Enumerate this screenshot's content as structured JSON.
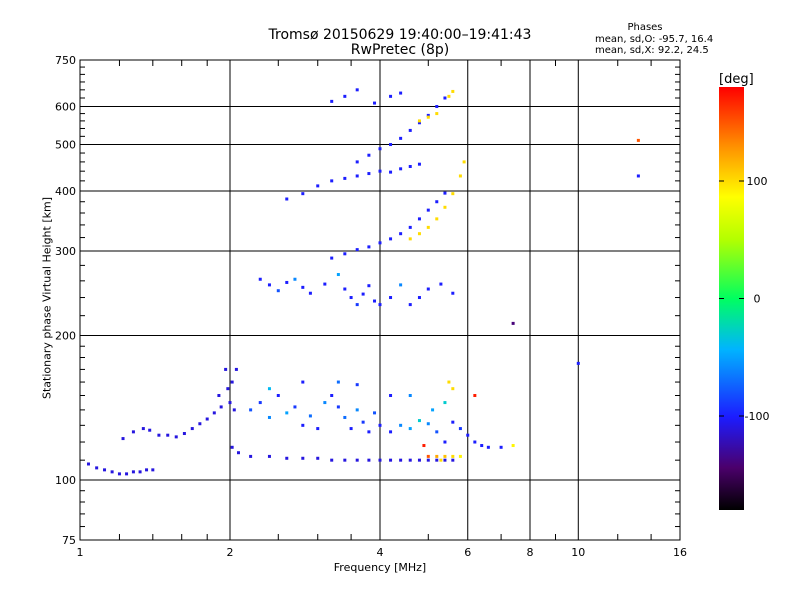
{
  "chart_data": {
    "type": "scatter",
    "title": "Tromsø 20150629 19:40:00–19:41:43",
    "subtitle": "RwPretec (8p)",
    "xlabel": "Frequency [MHz]",
    "ylabel": "Stationary phase Virtual Height [km]",
    "x_scale": "log",
    "y_scale": "log",
    "xlim": [
      1,
      16
    ],
    "ylim": [
      75,
      750
    ],
    "x_ticks": [
      "1",
      "2",
      "4",
      "6",
      "8",
      "10",
      "16"
    ],
    "y_ticks": [
      "75",
      "100",
      "200",
      "300",
      "400",
      "500",
      "600",
      "750"
    ],
    "grid": true,
    "phase_stats": {
      "title": "Phases",
      "o_line": "mean, sd,O: -95.7, 16.4",
      "x_line": "mean, sd,X:  92.2, 24.5"
    },
    "colorbar": {
      "label": "[deg]",
      "ticks": [
        "100",
        "0",
        "-100"
      ],
      "tick_values": [
        100,
        0,
        -100
      ],
      "range": [
        -180,
        180
      ],
      "colormap": "rainbow"
    },
    "series": [
      {
        "comment_trace": "low trace",
        "points": [
          [
            1.04,
            108,
            -110
          ],
          [
            1.08,
            106,
            -110
          ],
          [
            1.12,
            105,
            -110
          ],
          [
            1.16,
            104,
            -110
          ],
          [
            1.2,
            103,
            -110
          ],
          [
            1.24,
            103,
            -110
          ],
          [
            1.28,
            104,
            -110
          ],
          [
            1.32,
            104,
            -110
          ],
          [
            1.36,
            105,
            -110
          ],
          [
            1.4,
            105,
            -110
          ],
          [
            1.22,
            122,
            -110
          ],
          [
            1.28,
            126,
            -110
          ],
          [
            1.34,
            128,
            -110
          ],
          [
            1.38,
            127,
            -110
          ],
          [
            1.44,
            124,
            -110
          ],
          [
            1.5,
            124,
            -110
          ],
          [
            1.56,
            123,
            -110
          ],
          [
            1.62,
            125,
            -110
          ],
          [
            1.68,
            128,
            -110
          ],
          [
            1.74,
            131,
            -110
          ],
          [
            1.8,
            134,
            -110
          ],
          [
            1.86,
            138,
            -110
          ],
          [
            1.92,
            142,
            -110
          ],
          [
            1.98,
            155,
            -110
          ],
          [
            2.02,
            160,
            -110
          ],
          [
            2.06,
            170,
            -110
          ],
          [
            1.96,
            170,
            -110
          ],
          [
            1.9,
            150,
            -110
          ],
          [
            2.0,
            145,
            -110
          ],
          [
            2.04,
            140,
            -110
          ],
          [
            2.02,
            117,
            -110
          ],
          [
            2.08,
            114,
            -110
          ],
          [
            2.2,
            112,
            -110
          ],
          [
            2.4,
            112,
            -110
          ],
          [
            2.6,
            111,
            -110
          ],
          [
            2.8,
            111,
            -110
          ],
          [
            3.0,
            111,
            -110
          ],
          [
            3.2,
            110,
            -110
          ],
          [
            3.4,
            110,
            -110
          ],
          [
            3.6,
            110,
            -110
          ],
          [
            3.8,
            110,
            -110
          ],
          [
            4.0,
            110,
            -110
          ],
          [
            4.2,
            110,
            -110
          ],
          [
            4.4,
            110,
            -110
          ],
          [
            4.6,
            110,
            -110
          ],
          [
            4.8,
            110,
            -110
          ],
          [
            5.0,
            110,
            -110
          ],
          [
            5.2,
            110,
            -110
          ],
          [
            5.4,
            110,
            -110
          ],
          [
            5.6,
            110,
            -110
          ]
        ]
      },
      {
        "comment_trace": "mid scatter",
        "points": [
          [
            2.2,
            140,
            -80
          ],
          [
            2.3,
            145,
            -90
          ],
          [
            2.4,
            135,
            -60
          ],
          [
            2.5,
            150,
            -100
          ],
          [
            2.6,
            138,
            -50
          ],
          [
            2.7,
            142,
            -90
          ],
          [
            2.8,
            130,
            -100
          ],
          [
            2.9,
            136,
            -70
          ],
          [
            3.0,
            128,
            -100
          ],
          [
            3.1,
            145,
            -60
          ],
          [
            3.2,
            150,
            -100
          ],
          [
            3.3,
            142,
            -90
          ],
          [
            3.4,
            135,
            -70
          ],
          [
            3.5,
            128,
            -100
          ],
          [
            3.6,
            140,
            -60
          ],
          [
            3.7,
            132,
            -90
          ],
          [
            3.8,
            126,
            -100
          ],
          [
            3.9,
            138,
            -80
          ],
          [
            4.0,
            130,
            -100
          ],
          [
            4.2,
            126,
            -100
          ],
          [
            4.4,
            130,
            -60
          ],
          [
            4.6,
            128,
            -50
          ],
          [
            4.8,
            133,
            -30
          ],
          [
            5.0,
            131,
            -60
          ],
          [
            5.2,
            126,
            -80
          ],
          [
            5.4,
            120,
            -100
          ],
          [
            5.6,
            132,
            -100
          ],
          [
            5.8,
            128,
            -90
          ],
          [
            6.0,
            124,
            -100
          ],
          [
            6.2,
            120,
            -100
          ],
          [
            2.4,
            155,
            -40
          ],
          [
            2.8,
            160,
            -100
          ],
          [
            3.3,
            160,
            -70
          ],
          [
            3.6,
            158,
            -90
          ],
          [
            4.2,
            150,
            -100
          ],
          [
            4.6,
            150,
            -60
          ],
          [
            5.1,
            140,
            -50
          ],
          [
            5.4,
            145,
            -30
          ],
          [
            5.5,
            160,
            100
          ],
          [
            5.6,
            155,
            100
          ],
          [
            5.2,
            112,
            120
          ],
          [
            5.4,
            112,
            110
          ],
          [
            5.6,
            112,
            100
          ],
          [
            5.8,
            112,
            90
          ],
          [
            5.0,
            112,
            150
          ],
          [
            4.9,
            118,
            170
          ],
          [
            5.3,
            110,
            100
          ],
          [
            6.4,
            118,
            -100
          ],
          [
            6.6,
            117,
            -100
          ],
          [
            7.0,
            117,
            -100
          ],
          [
            7.4,
            118,
            90
          ],
          [
            6.2,
            150,
            170
          ]
        ]
      },
      {
        "comment_trace": "F region traces",
        "points": [
          [
            2.3,
            262,
            -100
          ],
          [
            2.4,
            255,
            -100
          ],
          [
            2.5,
            248,
            -80
          ],
          [
            2.6,
            258,
            -100
          ],
          [
            2.7,
            262,
            -60
          ],
          [
            2.8,
            252,
            -100
          ],
          [
            2.9,
            245,
            -100
          ],
          [
            3.1,
            256,
            -100
          ],
          [
            3.3,
            268,
            -50
          ],
          [
            3.4,
            250,
            -100
          ],
          [
            3.5,
            240,
            -100
          ],
          [
            3.6,
            232,
            -90
          ],
          [
            3.7,
            244,
            -100
          ],
          [
            3.8,
            254,
            -100
          ],
          [
            3.9,
            236,
            -100
          ],
          [
            4.0,
            232,
            -100
          ],
          [
            4.2,
            240,
            -100
          ],
          [
            4.4,
            255,
            -60
          ],
          [
            4.6,
            232,
            -100
          ],
          [
            4.8,
            240,
            -100
          ],
          [
            5.0,
            250,
            -100
          ],
          [
            5.3,
            256,
            -100
          ],
          [
            5.6,
            245,
            -100
          ],
          [
            3.2,
            290,
            -100
          ],
          [
            3.4,
            296,
            -100
          ],
          [
            3.6,
            302,
            -100
          ],
          [
            3.8,
            306,
            -100
          ],
          [
            4.0,
            312,
            -100
          ],
          [
            4.2,
            318,
            -100
          ],
          [
            4.4,
            326,
            -100
          ],
          [
            4.6,
            336,
            -100
          ],
          [
            4.8,
            350,
            -100
          ],
          [
            5.0,
            365,
            -100
          ],
          [
            5.2,
            380,
            -100
          ],
          [
            5.4,
            396,
            -100
          ],
          [
            4.6,
            318,
            100
          ],
          [
            4.8,
            326,
            100
          ],
          [
            5.0,
            336,
            100
          ],
          [
            5.2,
            350,
            100
          ],
          [
            5.4,
            370,
            100
          ],
          [
            5.6,
            395,
            100
          ],
          [
            5.8,
            430,
            100
          ],
          [
            5.9,
            460,
            100
          ],
          [
            3.6,
            460,
            -100
          ],
          [
            3.8,
            475,
            -100
          ],
          [
            4.0,
            490,
            -100
          ],
          [
            4.2,
            500,
            -100
          ],
          [
            4.4,
            515,
            -100
          ],
          [
            4.6,
            535,
            -100
          ],
          [
            4.8,
            555,
            -100
          ],
          [
            5.0,
            575,
            -100
          ],
          [
            5.2,
            600,
            -100
          ],
          [
            5.4,
            625,
            -100
          ],
          [
            4.8,
            560,
            100
          ],
          [
            5.0,
            570,
            100
          ],
          [
            5.2,
            580,
            100
          ],
          [
            5.5,
            630,
            100
          ],
          [
            5.6,
            645,
            100
          ],
          [
            3.2,
            615,
            -100
          ],
          [
            3.4,
            630,
            -100
          ],
          [
            3.6,
            650,
            -100
          ],
          [
            3.9,
            610,
            -100
          ],
          [
            4.2,
            630,
            -100
          ],
          [
            4.4,
            640,
            -100
          ],
          [
            2.6,
            385,
            -100
          ],
          [
            2.8,
            395,
            -100
          ],
          [
            3.0,
            410,
            -100
          ],
          [
            3.2,
            420,
            -100
          ],
          [
            3.4,
            425,
            -100
          ],
          [
            3.6,
            430,
            -100
          ],
          [
            3.8,
            435,
            -100
          ],
          [
            4.0,
            440,
            -100
          ],
          [
            4.2,
            438,
            -100
          ],
          [
            4.4,
            445,
            -100
          ],
          [
            4.6,
            450,
            -100
          ],
          [
            4.8,
            455,
            -100
          ],
          [
            7.4,
            212,
            -140
          ],
          [
            10.0,
            175,
            -100
          ],
          [
            13.2,
            430,
            -100
          ],
          [
            13.2,
            510,
            150
          ]
        ]
      }
    ]
  }
}
